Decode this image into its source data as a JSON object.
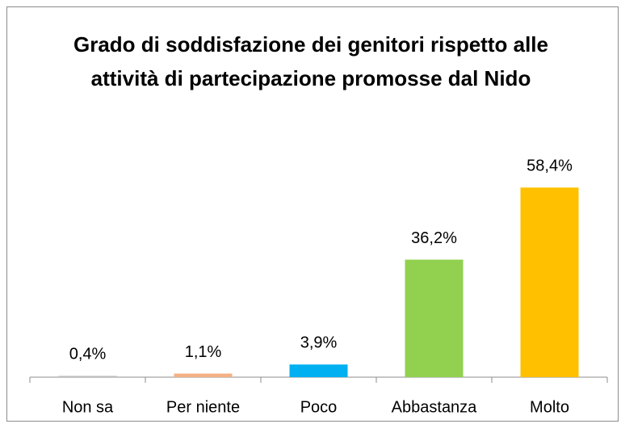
{
  "chart_data": {
    "type": "bar",
    "title": "Grado di soddisfazione dei genitori rispetto alle attività di partecipazione promosse dal Nido",
    "categories": [
      "Non sa",
      "Per niente",
      "Poco",
      "Abbastanza",
      "Molto"
    ],
    "values": [
      0.4,
      1.1,
      3.9,
      36.2,
      58.4
    ],
    "value_labels": [
      "0,4%",
      "1,1%",
      "3,9%",
      "36,2%",
      "58,4%"
    ],
    "colors": [
      "#bfbfbf",
      "#f4b183",
      "#00b0f0",
      "#92d050",
      "#ffc000"
    ]
  }
}
